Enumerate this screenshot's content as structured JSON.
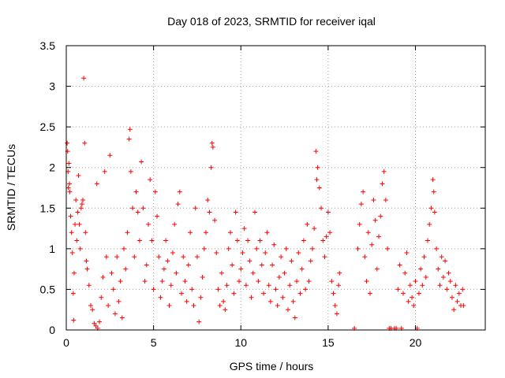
{
  "chart_data": {
    "type": "scatter",
    "title": "Day 018 of 2023, SRMTID for receiver iqal",
    "xlabel": "GPS time / hours",
    "ylabel": "SRMTID / TECUs",
    "xlim": [
      0,
      24
    ],
    "ylim": [
      0,
      3.5
    ],
    "grid": true,
    "marker": "+",
    "colors": {
      "series": "#ff0000",
      "grid": "#a0a0a0",
      "axis": "#000000"
    },
    "x_ticks": [
      {
        "value": 0,
        "label": "0"
      },
      {
        "value": 5,
        "label": "5"
      },
      {
        "value": 10,
        "label": "10"
      },
      {
        "value": 15,
        "label": "15"
      },
      {
        "value": 20,
        "label": "20"
      }
    ],
    "y_ticks": [
      {
        "value": 0,
        "label": "0"
      },
      {
        "value": 0.5,
        "label": "0.5"
      },
      {
        "value": 1,
        "label": "1"
      },
      {
        "value": 1.5,
        "label": "1.5"
      },
      {
        "value": 2,
        "label": "2"
      },
      {
        "value": 2.5,
        "label": "2.5"
      },
      {
        "value": 3,
        "label": "3"
      },
      {
        "value": 3.5,
        "label": "3.5"
      }
    ],
    "series": [
      {
        "name": "SRMTID",
        "points": [
          [
            0.05,
            2.3
          ],
          [
            0.08,
            2.2
          ],
          [
            0.1,
            1.95
          ],
          [
            0.12,
            1.75
          ],
          [
            0.15,
            2.05
          ],
          [
            0.18,
            1.8
          ],
          [
            0.2,
            1.7
          ],
          [
            0.25,
            1.4
          ],
          [
            0.3,
            1.2
          ],
          [
            0.35,
            0.95
          ],
          [
            0.4,
            0.45
          ],
          [
            0.42,
            0.12
          ],
          [
            0.45,
            0.7
          ],
          [
            0.5,
            1.3
          ],
          [
            0.55,
            1.6
          ],
          [
            0.6,
            1.1
          ],
          [
            0.65,
            1.45
          ],
          [
            0.7,
            1.9
          ],
          [
            0.75,
            1.3
          ],
          [
            0.8,
            1.0
          ],
          [
            0.85,
            1.5
          ],
          [
            0.9,
            1.55
          ],
          [
            0.95,
            1.6
          ],
          [
            1.0,
            3.1
          ],
          [
            1.05,
            2.3
          ],
          [
            1.1,
            1.2
          ],
          [
            1.15,
            0.85
          ],
          [
            1.2,
            0.75
          ],
          [
            1.3,
            0.55
          ],
          [
            1.4,
            0.3
          ],
          [
            1.5,
            0.25
          ],
          [
            1.6,
            0.08
          ],
          [
            1.7,
            0.05
          ],
          [
            1.75,
            1.8
          ],
          [
            1.8,
            0.02
          ],
          [
            1.9,
            0.1
          ],
          [
            2.0,
            0.4
          ],
          [
            2.1,
            0.65
          ],
          [
            2.2,
            1.95
          ],
          [
            2.3,
            0.9
          ],
          [
            2.4,
            0.3
          ],
          [
            2.5,
            2.15
          ],
          [
            2.6,
            0.7
          ],
          [
            2.7,
            0.5
          ],
          [
            2.8,
            0.2
          ],
          [
            2.9,
            0.9
          ],
          [
            3.0,
            0.35
          ],
          [
            3.1,
            0.6
          ],
          [
            3.2,
            0.15
          ],
          [
            3.3,
            1.0
          ],
          [
            3.4,
            0.75
          ],
          [
            3.5,
            1.2
          ],
          [
            3.6,
            2.35
          ],
          [
            3.65,
            2.47
          ],
          [
            3.7,
            1.95
          ],
          [
            3.8,
            1.5
          ],
          [
            3.9,
            0.9
          ],
          [
            4.0,
            1.7
          ],
          [
            4.1,
            1.45
          ],
          [
            4.2,
            1.1
          ],
          [
            4.3,
            2.07
          ],
          [
            4.4,
            1.5
          ],
          [
            4.5,
            0.6
          ],
          [
            4.6,
            0.8
          ],
          [
            4.7,
            1.3
          ],
          [
            4.8,
            1.85
          ],
          [
            4.9,
            1.1
          ],
          [
            5.0,
            0.5
          ],
          [
            5.1,
            1.7
          ],
          [
            5.2,
            1.4
          ],
          [
            5.3,
            0.9
          ],
          [
            5.4,
            0.4
          ],
          [
            5.5,
            0.6
          ],
          [
            5.6,
            0.75
          ],
          [
            5.7,
            1.1
          ],
          [
            5.8,
            0.85
          ],
          [
            5.9,
            0.3
          ],
          [
            6.0,
            0.55
          ],
          [
            6.1,
            0.95
          ],
          [
            6.2,
            1.3
          ],
          [
            6.3,
            0.7
          ],
          [
            6.4,
            1.55
          ],
          [
            6.5,
            1.7
          ],
          [
            6.6,
            0.45
          ],
          [
            6.7,
            0.9
          ],
          [
            6.8,
            0.6
          ],
          [
            6.9,
            0.35
          ],
          [
            7.0,
            0.8
          ],
          [
            7.1,
            1.2
          ],
          [
            7.2,
            0.5
          ],
          [
            7.3,
            0.3
          ],
          [
            7.4,
            1.5
          ],
          [
            7.5,
            0.9
          ],
          [
            7.6,
            0.1
          ],
          [
            7.7,
            0.4
          ],
          [
            7.8,
            0.65
          ],
          [
            7.9,
            1.0
          ],
          [
            8.0,
            1.2
          ],
          [
            8.1,
            1.6
          ],
          [
            8.2,
            1.45
          ],
          [
            8.3,
            2.0
          ],
          [
            8.35,
            2.3
          ],
          [
            8.4,
            2.25
          ],
          [
            8.5,
            1.35
          ],
          [
            8.6,
            0.95
          ],
          [
            8.7,
            0.5
          ],
          [
            8.8,
            0.3
          ],
          [
            8.9,
            0.7
          ],
          [
            9.0,
            0.35
          ],
          [
            9.1,
            0.25
          ],
          [
            9.2,
            0.55
          ],
          [
            9.3,
            1.0
          ],
          [
            9.4,
            1.2
          ],
          [
            9.5,
            0.8
          ],
          [
            9.6,
            0.45
          ],
          [
            9.7,
            1.45
          ],
          [
            9.8,
            1.1
          ],
          [
            9.9,
            0.6
          ],
          [
            10.0,
            0.75
          ],
          [
            10.1,
            0.95
          ],
          [
            10.2,
            1.25
          ],
          [
            10.3,
            0.55
          ],
          [
            10.4,
            1.1
          ],
          [
            10.5,
            0.85
          ],
          [
            10.6,
            0.4
          ],
          [
            10.7,
            0.7
          ],
          [
            10.8,
            1.45
          ],
          [
            10.9,
            1.0
          ],
          [
            11.0,
            0.6
          ],
          [
            11.1,
            1.1
          ],
          [
            11.2,
            0.8
          ],
          [
            11.3,
            0.45
          ],
          [
            11.4,
            0.95
          ],
          [
            11.5,
            1.2
          ],
          [
            11.6,
            0.55
          ],
          [
            11.7,
            0.35
          ],
          [
            11.8,
            0.8
          ],
          [
            11.9,
            1.05
          ],
          [
            12.0,
            0.5
          ],
          [
            12.1,
            0.3
          ],
          [
            12.2,
            0.65
          ],
          [
            12.3,
            0.9
          ],
          [
            12.4,
            0.4
          ],
          [
            12.5,
            0.7
          ],
          [
            12.6,
            1.0
          ],
          [
            12.7,
            0.25
          ],
          [
            12.8,
            0.55
          ],
          [
            12.9,
            0.85
          ],
          [
            13.0,
            0.35
          ],
          [
            13.1,
            0.15
          ],
          [
            13.2,
            0.6
          ],
          [
            13.3,
            0.95
          ],
          [
            13.4,
            0.45
          ],
          [
            13.5,
            0.75
          ],
          [
            13.6,
            1.1
          ],
          [
            13.7,
            0.5
          ],
          [
            13.8,
            1.3
          ],
          [
            13.9,
            0.6
          ],
          [
            14.0,
            0.85
          ],
          [
            14.1,
            1.0
          ],
          [
            14.2,
            1.25
          ],
          [
            14.3,
            2.2
          ],
          [
            14.35,
            1.85
          ],
          [
            14.4,
            2.0
          ],
          [
            14.5,
            1.75
          ],
          [
            14.6,
            1.5
          ],
          [
            14.7,
            1.1
          ],
          [
            14.8,
            0.9
          ],
          [
            14.9,
            1.15
          ],
          [
            15.0,
            1.45
          ],
          [
            15.1,
            1.2
          ],
          [
            15.2,
            0.6
          ],
          [
            15.3,
            0.45
          ],
          [
            15.4,
            0.3
          ],
          [
            15.5,
            0.2
          ],
          [
            15.6,
            0.55
          ],
          [
            15.65,
            0.7
          ],
          [
            16.5,
            0.02
          ],
          [
            16.7,
            1.0
          ],
          [
            16.8,
            1.3
          ],
          [
            16.9,
            1.55
          ],
          [
            17.0,
            1.7
          ],
          [
            17.1,
            0.9
          ],
          [
            17.2,
            0.6
          ],
          [
            17.3,
            1.2
          ],
          [
            17.4,
            0.45
          ],
          [
            17.5,
            1.05
          ],
          [
            17.6,
            1.6
          ],
          [
            17.7,
            1.35
          ],
          [
            17.8,
            0.75
          ],
          [
            17.9,
            1.15
          ],
          [
            18.0,
            1.4
          ],
          [
            18.1,
            1.8
          ],
          [
            18.2,
            1.95
          ],
          [
            18.3,
            1.6
          ],
          [
            18.4,
            1.0
          ],
          [
            18.5,
            0.02
          ],
          [
            18.6,
            0.02
          ],
          [
            18.8,
            0.02
          ],
          [
            18.9,
            0.02
          ],
          [
            19.0,
            0.5
          ],
          [
            19.1,
            0.8
          ],
          [
            19.2,
            0.02
          ],
          [
            19.3,
            0.45
          ],
          [
            19.4,
            0.7
          ],
          [
            19.5,
            0.95
          ],
          [
            19.6,
            0.35
          ],
          [
            19.7,
            0.55
          ],
          [
            19.8,
            0.4
          ],
          [
            19.9,
            0.3
          ],
          [
            20.0,
            0.6
          ],
          [
            20.1,
            0.02
          ],
          [
            20.2,
            0.45
          ],
          [
            20.3,
            0.75
          ],
          [
            20.4,
            0.55
          ],
          [
            20.5,
            0.9
          ],
          [
            20.6,
            0.65
          ],
          [
            20.7,
            1.1
          ],
          [
            20.8,
            1.3
          ],
          [
            20.9,
            1.5
          ],
          [
            21.0,
            1.85
          ],
          [
            21.05,
            1.7
          ],
          [
            21.1,
            1.45
          ],
          [
            21.2,
            1.0
          ],
          [
            21.3,
            0.75
          ],
          [
            21.4,
            0.55
          ],
          [
            21.5,
            0.9
          ],
          [
            21.6,
            0.65
          ],
          [
            21.7,
            0.85
          ],
          [
            21.8,
            0.5
          ],
          [
            21.9,
            0.7
          ],
          [
            22.0,
            0.6
          ],
          [
            22.1,
            0.4
          ],
          [
            22.2,
            0.25
          ],
          [
            22.3,
            0.55
          ],
          [
            22.4,
            0.35
          ],
          [
            22.5,
            0.45
          ],
          [
            22.6,
            0.3
          ],
          [
            22.7,
            0.5
          ],
          [
            22.75,
            0.3
          ]
        ]
      }
    ]
  }
}
